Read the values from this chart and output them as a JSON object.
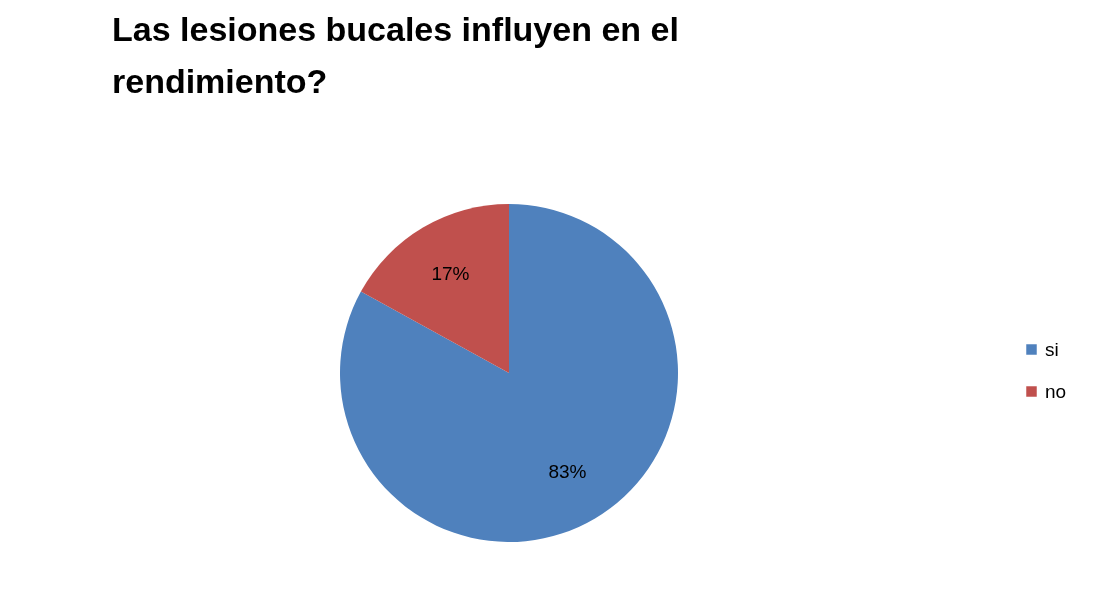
{
  "chart_data": {
    "type": "pie",
    "title": "Las lesiones bucales influyen en el rendimiento?",
    "categories": [
      "si",
      "no"
    ],
    "values": [
      83,
      17
    ],
    "colors": [
      "#4f81bd",
      "#c0504d"
    ],
    "value_labels": [
      "83%",
      "17%"
    ],
    "legend": "right"
  }
}
